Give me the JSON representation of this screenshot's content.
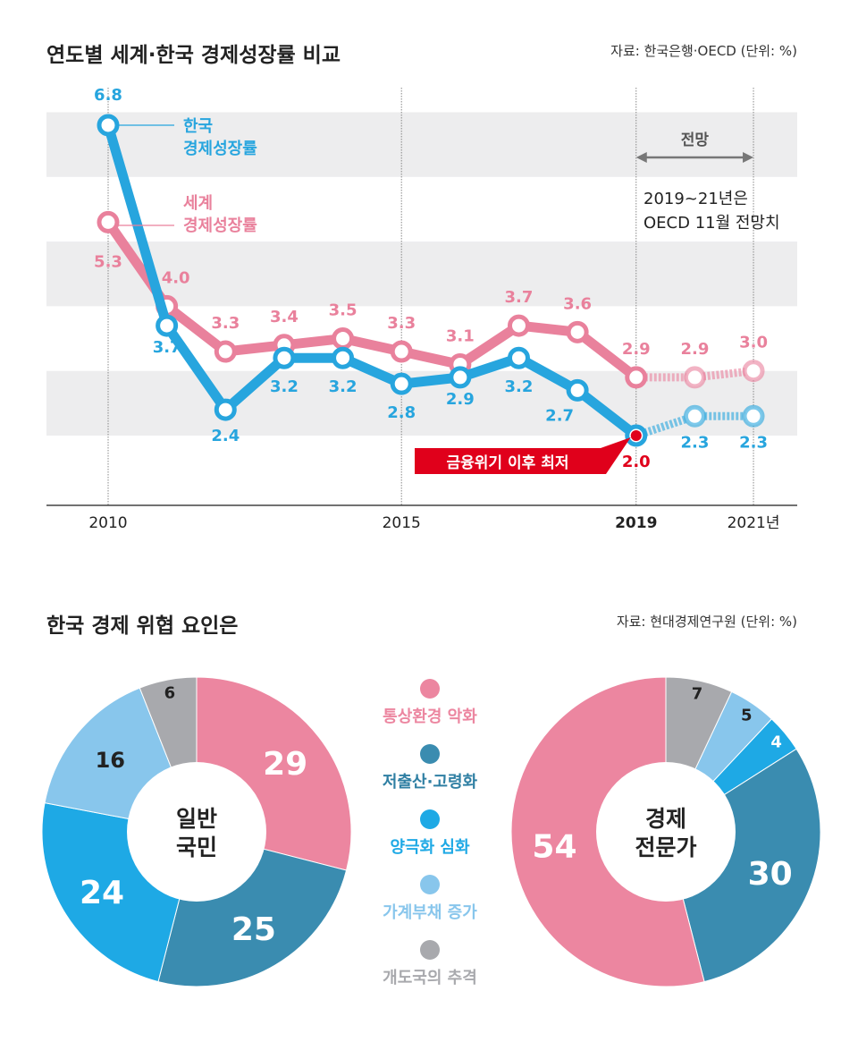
{
  "chart_data": [
    {
      "type": "line",
      "title": "연도별 세계·한국 경제성장률 비교",
      "source": "자료: 한국은행·OECD (단위: %)",
      "x": [
        2010,
        2011,
        2012,
        2013,
        2014,
        2015,
        2016,
        2017,
        2018,
        2019,
        2020,
        2021
      ],
      "x_tick_labels": [
        "2010",
        "2015",
        "2019",
        "2021년"
      ],
      "x_ticks": [
        2010,
        2015,
        2019,
        2021
      ],
      "ylim": [
        1,
        7
      ],
      "shaded_bands": [
        [
          2,
          3
        ],
        [
          4,
          5
        ],
        [
          6,
          7
        ]
      ],
      "series": [
        {
          "name": "한국 경제성장률",
          "name_lines": [
            "한국",
            "경제성장률"
          ],
          "color": "#27a5de",
          "values": [
            6.8,
            3.7,
            2.4,
            3.2,
            3.2,
            2.8,
            2.9,
            3.2,
            2.7,
            2.0,
            2.3,
            2.3
          ],
          "labels": [
            "6.8",
            "3.7",
            "2.4",
            "3.2",
            "3.2",
            "2.8",
            "2.9",
            "3.2",
            "2.7",
            "2.0",
            "2.3",
            "2.3"
          ]
        },
        {
          "name": "세계 경제성장률",
          "name_lines": [
            "세계",
            "경제성장률"
          ],
          "color": "#e9819c",
          "values": [
            5.3,
            4.0,
            3.3,
            3.4,
            3.5,
            3.3,
            3.1,
            3.7,
            3.6,
            2.9,
            2.9,
            3.0
          ],
          "labels": [
            "5.3",
            "4.0",
            "3.3",
            "3.4",
            "3.5",
            "3.3",
            "3.1",
            "3.7",
            "3.6",
            "2.9",
            "2.9",
            "3.0"
          ]
        }
      ],
      "forecast_from": 2019,
      "annotations": {
        "forecast_label": "전망",
        "forecast_note": [
          "2019~21년은",
          "OECD 11월 전망치"
        ],
        "callout": "금융위기 이후 최저",
        "callout_color": "#e0001b"
      }
    },
    {
      "type": "pie",
      "title": "한국 경제 위협 요인은",
      "source": "자료: 현대경제연구원 (단위: %)",
      "legend": [
        {
          "label": "통상환경 악화",
          "color": "#ec86a0"
        },
        {
          "label": "저출산·고령화",
          "color": "#3a8cb0"
        },
        {
          "label": "양극화 심화",
          "color": "#1ea9e5"
        },
        {
          "label": "가계부채 증가",
          "color": "#88c6ec"
        },
        {
          "label": "개도국의 추격",
          "color": "#a8a9ad"
        }
      ],
      "donuts": [
        {
          "center_label": [
            "일반",
            "국민"
          ],
          "slices": [
            {
              "cat": 0,
              "value": 29
            },
            {
              "cat": 1,
              "value": 25
            },
            {
              "cat": 2,
              "value": 24
            },
            {
              "cat": 3,
              "value": 16
            },
            {
              "cat": 4,
              "value": 6
            }
          ]
        },
        {
          "center_label": [
            "경제",
            "전문가"
          ],
          "slices": [
            {
              "cat": 4,
              "value": 7
            },
            {
              "cat": 3,
              "value": 5
            },
            {
              "cat": 2,
              "value": 4
            },
            {
              "cat": 1,
              "value": 30
            },
            {
              "cat": 0,
              "value": 54
            }
          ]
        }
      ]
    }
  ]
}
